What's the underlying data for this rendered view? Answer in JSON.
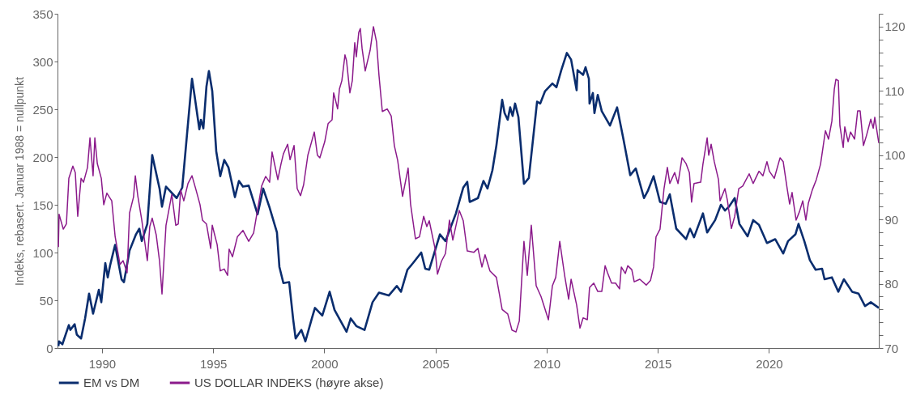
{
  "chart_data": {
    "type": "line",
    "ylabel": "Indeks, rebasert. Januar 1988 = nullpunkt",
    "xlim": [
      1988,
      2024.94
    ],
    "xticks": [
      1990,
      1995,
      2000,
      2005,
      2010,
      2015,
      2020
    ],
    "ylim": [
      0,
      350
    ],
    "yticks": [
      0,
      50,
      100,
      150,
      200,
      250,
      300,
      350
    ],
    "y2lim": [
      70,
      122
    ],
    "y2ticks": [
      70,
      {
        "value": 72,
        "label": null
      },
      {
        "value": 74,
        "label": null
      },
      {
        "value": 76,
        "label": null
      },
      {
        "value": 78,
        "label": null
      },
      80,
      {
        "value": 82,
        "label": null
      },
      {
        "value": 84,
        "label": null
      },
      {
        "value": 86,
        "label": null
      },
      {
        "value": 88,
        "label": null
      },
      90,
      {
        "value": 92,
        "label": null
      },
      {
        "value": 94,
        "label": null
      },
      {
        "value": 96,
        "label": null
      },
      {
        "value": 98,
        "label": null
      },
      100,
      {
        "value": 102,
        "label": null
      },
      {
        "value": 104,
        "label": null
      },
      {
        "value": 106,
        "label": null
      },
      {
        "value": 108,
        "label": null
      },
      110,
      {
        "value": 112,
        "label": null
      },
      {
        "value": 114,
        "label": null
      },
      {
        "value": 116,
        "label": null
      },
      {
        "value": 118,
        "label": null
      },
      120,
      {
        "value": 122,
        "label": null
      }
    ],
    "grid": false,
    "legend": "bottom",
    "series": [
      {
        "name": "EM vs DM",
        "color": "#0a2d6e",
        "x": [
          1988.04,
          1988.07,
          1988.22,
          1988.51,
          1988.58,
          1988.77,
          1988.87,
          1989.06,
          1989.24,
          1989.42,
          1989.6,
          1989.86,
          1989.97,
          1990.15,
          1990.26,
          1990.37,
          1990.59,
          1990.88,
          1990.99,
          1991.24,
          1991.53,
          1991.68,
          1991.79,
          1992.04,
          1992.26,
          1992.59,
          1992.7,
          1992.88,
          1993.36,
          1993.61,
          1994.05,
          1994.16,
          1994.38,
          1994.45,
          1994.56,
          1994.7,
          1994.81,
          1994.96,
          1995.14,
          1995.32,
          1995.5,
          1995.69,
          1995.98,
          1996.16,
          1996.34,
          1996.6,
          1997.0,
          1997.25,
          1997.54,
          1997.87,
          1997.98,
          1998.16,
          1998.42,
          1998.6,
          1998.71,
          1998.97,
          1999.15,
          1999.44,
          1999.58,
          1999.91,
          2000.24,
          2000.46,
          2001.0,
          2001.19,
          2001.44,
          2001.81,
          2002.17,
          2002.46,
          2002.9,
          2003.26,
          2003.45,
          2003.74,
          2003.99,
          2004.36,
          2004.54,
          2004.72,
          2005.2,
          2005.45,
          2005.92,
          2006.25,
          2006.43,
          2006.54,
          2006.91,
          2007.16,
          2007.34,
          2007.56,
          2007.74,
          2008.0,
          2008.11,
          2008.25,
          2008.36,
          2008.47,
          2008.58,
          2008.73,
          2008.98,
          2009.2,
          2009.57,
          2009.71,
          2009.93,
          2010.26,
          2010.44,
          2010.66,
          2010.91,
          2011.1,
          2011.35,
          2011.39,
          2011.64,
          2011.75,
          2011.9,
          2011.93,
          2012.08,
          2012.15,
          2012.3,
          2012.48,
          2012.85,
          2013.17,
          2013.46,
          2013.76,
          2014.01,
          2014.38,
          2014.56,
          2014.81,
          2015.1,
          2015.36,
          2015.54,
          2015.83,
          2016.27,
          2016.45,
          2016.63,
          2017.03,
          2017.22,
          2017.58,
          2017.84,
          2018.02,
          2018.2,
          2018.46,
          2018.67,
          2019.04,
          2019.29,
          2019.55,
          2019.91,
          2020.28,
          2020.64,
          2020.86,
          2021.19,
          2021.33,
          2021.59,
          2021.84,
          2022.1,
          2022.39,
          2022.5,
          2022.83,
          2023.12,
          2023.37,
          2023.74,
          2024.03,
          2024.32,
          2024.58,
          2024.94
        ],
        "values": [
          2,
          7,
          4,
          24,
          19,
          25,
          14,
          10,
          31,
          57,
          36,
          61,
          48,
          89,
          74,
          87,
          108,
          72,
          69,
          102,
          119,
          125,
          112,
          130,
          202,
          167,
          148,
          169,
          157,
          168,
          282,
          265,
          229,
          239,
          230,
          274,
          290,
          269,
          206,
          180,
          197,
          189,
          158,
          175,
          169,
          170,
          140,
          167,
          147,
          121,
          85,
          68,
          69,
          30,
          10,
          19,
          7,
          31,
          42,
          34,
          59,
          40,
          17,
          31,
          23,
          19,
          48,
          58,
          55,
          65,
          59,
          82,
          89,
          100,
          83,
          82,
          119,
          112,
          141,
          168,
          174,
          153,
          157,
          175,
          167,
          186,
          212,
          260,
          246,
          239,
          252,
          243,
          256,
          242,
          172,
          178,
          258,
          256,
          269,
          277,
          273,
          291,
          309,
          302,
          270,
          291,
          286,
          294,
          282,
          256,
          267,
          246,
          265,
          248,
          233,
          252,
          218,
          181,
          188,
          157,
          165,
          180,
          153,
          151,
          161,
          125,
          114,
          125,
          116,
          141,
          121,
          134,
          150,
          144,
          148,
          157,
          130,
          117,
          134,
          129,
          110,
          114,
          99,
          112,
          119,
          130,
          112,
          92,
          82,
          83,
          72,
          74,
          59,
          72,
          59,
          57,
          44,
          48,
          42
        ]
      },
      {
        "name": "US DOLLAR INDEKS (høyre akse)",
        "color": "#8b1a8b",
        "axis": "y2",
        "x": [
          1988.04,
          1988.07,
          1988.26,
          1988.4,
          1988.51,
          1988.69,
          1988.8,
          1988.91,
          1989.06,
          1989.17,
          1989.35,
          1989.46,
          1989.6,
          1989.68,
          1989.79,
          1989.97,
          1990.08,
          1990.22,
          1990.44,
          1990.59,
          1990.81,
          1990.95,
          1991.13,
          1991.24,
          1991.42,
          1991.5,
          1991.61,
          1991.79,
          1992.04,
          1992.15,
          1992.26,
          1992.44,
          1992.59,
          1992.7,
          1992.88,
          1993.14,
          1993.32,
          1993.43,
          1993.54,
          1993.68,
          1993.87,
          1994.05,
          1994.23,
          1994.41,
          1994.52,
          1994.7,
          1994.89,
          1994.96,
          1995.18,
          1995.32,
          1995.5,
          1995.65,
          1995.72,
          1995.87,
          1996.09,
          1996.34,
          1996.6,
          1996.82,
          1997.18,
          1997.36,
          1997.54,
          1997.65,
          1997.91,
          1998.05,
          1998.16,
          1998.35,
          1998.46,
          1998.64,
          1998.78,
          1998.93,
          1999.07,
          1999.26,
          1999.55,
          1999.69,
          1999.8,
          2000.02,
          2000.17,
          2000.35,
          2000.42,
          2000.6,
          2000.68,
          2000.79,
          2000.93,
          2001.0,
          2001.15,
          2001.26,
          2001.37,
          2001.44,
          2001.55,
          2001.62,
          2001.7,
          2001.84,
          2002.06,
          2002.21,
          2002.35,
          2002.46,
          2002.61,
          2002.83,
          2003.01,
          2003.15,
          2003.3,
          2003.52,
          2003.77,
          2003.88,
          2004.1,
          2004.28,
          2004.47,
          2004.61,
          2004.72,
          2004.98,
          2005.09,
          2005.27,
          2005.45,
          2005.63,
          2005.78,
          2006.07,
          2006.25,
          2006.43,
          2006.73,
          2006.91,
          2007.09,
          2007.23,
          2007.45,
          2007.74,
          2008.0,
          2008.25,
          2008.44,
          2008.62,
          2008.77,
          2008.98,
          2009.13,
          2009.31,
          2009.53,
          2009.75,
          2010.08,
          2010.26,
          2010.41,
          2010.59,
          2010.81,
          2010.99,
          2011.1,
          2011.35,
          2011.5,
          2011.64,
          2011.83,
          2011.93,
          2012.12,
          2012.3,
          2012.48,
          2012.63,
          2012.74,
          2012.92,
          2013.1,
          2013.28,
          2013.36,
          2013.54,
          2013.65,
          2013.83,
          2013.94,
          2014.19,
          2014.48,
          2014.67,
          2014.81,
          2014.92,
          2015.1,
          2015.28,
          2015.43,
          2015.54,
          2015.76,
          2015.91,
          2016.09,
          2016.27,
          2016.42,
          2016.52,
          2016.63,
          2016.93,
          2017.03,
          2017.22,
          2017.29,
          2017.4,
          2017.54,
          2017.73,
          2017.8,
          2018.02,
          2018.13,
          2018.31,
          2018.46,
          2018.64,
          2018.82,
          2019.11,
          2019.29,
          2019.55,
          2019.73,
          2019.91,
          2020.02,
          2020.24,
          2020.5,
          2020.64,
          2020.82,
          2020.93,
          2021.04,
          2021.22,
          2021.37,
          2021.52,
          2021.66,
          2021.77,
          2021.95,
          2022.13,
          2022.32,
          2022.54,
          2022.68,
          2022.83,
          2022.94,
          2023.01,
          2023.12,
          2023.19,
          2023.34,
          2023.41,
          2023.56,
          2023.67,
          2023.85,
          2023.99,
          2024.1,
          2024.25,
          2024.39,
          2024.58,
          2024.69,
          2024.76,
          2024.94
        ],
        "values": [
          85.7,
          90.8,
          88.5,
          89.3,
          96.4,
          98.3,
          97.3,
          90.5,
          96.4,
          95.8,
          98.1,
          102.7,
          96.8,
          102.7,
          98.7,
          96.4,
          92.3,
          94.1,
          92.9,
          87.4,
          83.0,
          83.6,
          81.7,
          91.0,
          93.5,
          96.8,
          93.7,
          89.9,
          83.6,
          88.9,
          90.2,
          87.6,
          83.5,
          78.4,
          89.1,
          93.9,
          89.1,
          89.3,
          94.6,
          92.9,
          95.6,
          96.8,
          94.6,
          92.3,
          89.9,
          89.3,
          85.5,
          89.1,
          86.1,
          82.0,
          82.3,
          81.3,
          85.4,
          84.2,
          87.3,
          88.3,
          86.6,
          87.9,
          95.2,
          96.7,
          95.8,
          100.5,
          96.2,
          98.6,
          100.2,
          101.7,
          99.3,
          101.5,
          94.8,
          93.7,
          95.4,
          100.0,
          103.6,
          100.0,
          99.6,
          102.1,
          104.9,
          105.5,
          109.7,
          107.2,
          110.3,
          111.6,
          115.6,
          114.7,
          109.7,
          111.6,
          117.5,
          115.3,
          119.1,
          119.7,
          116.6,
          113.1,
          116.3,
          120.0,
          117.6,
          112.4,
          106.8,
          107.2,
          106.1,
          101.5,
          99.2,
          93.6,
          98.0,
          92.4,
          87.0,
          87.3,
          90.5,
          88.9,
          89.8,
          85.5,
          81.5,
          83.5,
          84.7,
          89.9,
          86.8,
          91.4,
          89.8,
          85.1,
          84.9,
          85.5,
          82.6,
          84.5,
          82.0,
          81.0,
          76.0,
          75.3,
          72.8,
          72.5,
          74.2,
          86.6,
          81.3,
          89.1,
          79.7,
          78.0,
          74.4,
          79.7,
          81.0,
          86.6,
          81.3,
          77.6,
          80.7,
          76.7,
          73.1,
          74.7,
          74.4,
          79.4,
          80.1,
          78.8,
          78.8,
          82.8,
          81.7,
          80.1,
          80.1,
          79.2,
          82.6,
          81.6,
          82.8,
          82.2,
          80.3,
          80.7,
          79.8,
          80.5,
          82.6,
          87.3,
          88.5,
          94.8,
          98.1,
          95.6,
          97.3,
          95.6,
          99.6,
          98.7,
          97.3,
          92.7,
          95.6,
          95.8,
          98.6,
          102.7,
          100.0,
          101.7,
          99.0,
          96.2,
          92.9,
          94.8,
          93.0,
          88.6,
          90.5,
          94.8,
          95.2,
          97.1,
          95.6,
          97.5,
          96.8,
          99.0,
          97.5,
          96.4,
          99.6,
          99.0,
          94.8,
          92.4,
          94.2,
          89.9,
          91.2,
          92.9,
          89.9,
          92.5,
          94.6,
          96.2,
          98.6,
          103.8,
          102.5,
          105.3,
          110.3,
          111.8,
          111.6,
          104.6,
          101.2,
          104.4,
          102.1,
          103.6,
          102.5,
          106.9,
          106.9,
          101.5,
          103.1,
          105.6,
          104.2,
          105.9,
          101.9
        ]
      }
    ]
  }
}
